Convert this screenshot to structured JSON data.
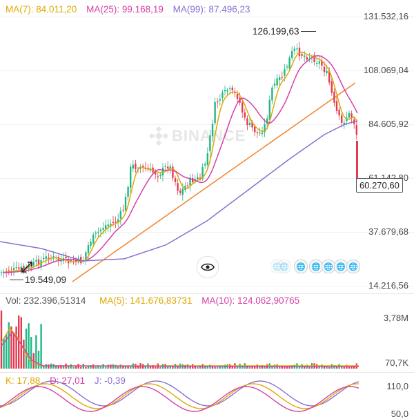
{
  "main_chart": {
    "legend": {
      "ma7": {
        "label": "MA(7): 84.011,20",
        "color": "#e0a800"
      },
      "ma25": {
        "label": "MA(25): 99.168,19",
        "color": "#d63fa6"
      },
      "ma99": {
        "label": "MA(99): 87.496,23",
        "color": "#8a6fd1"
      }
    },
    "y_axis_labels": [
      "131.532,16",
      "108.069,04",
      "84.605,92",
      "61.142,80",
      "37.679,68",
      "14.216,56"
    ],
    "high_marker": "126.199,63",
    "low_marker": "19.549,09",
    "current_price": "60.270,60",
    "watermark": "BINANCE",
    "up_color": "#1fb884",
    "down_color": "#e53950",
    "trendline_color": "#f08a3c"
  },
  "volume_panel": {
    "legend": {
      "vol": {
        "label": "Vol: 232.396,51314",
        "color": "#555555"
      },
      "ma5": {
        "label": "MA(5): 141.676,83731",
        "color": "#e0a800"
      },
      "ma10": {
        "label": "MA(10): 124.062,90765",
        "color": "#d63fa6"
      }
    },
    "y_axis_labels": [
      "3,78M",
      "70,7K"
    ]
  },
  "kdj_panel": {
    "legend": {
      "k": {
        "label": "K: 17,88",
        "color": "#e0a800"
      },
      "d": {
        "label": "D: 27,01",
        "color": "#d63fa6"
      },
      "j": {
        "label": "J: -0,39",
        "color": "#8a6fd1"
      }
    },
    "y_axis_labels": [
      "110,0",
      "50,0"
    ]
  },
  "controls": {
    "eye_icon": "eye-icon",
    "globe_icons": [
      "globe-icon",
      "globe-icon",
      "globe-icon",
      "globe-icon",
      "globe-icon"
    ],
    "globe_symbol": "🌐"
  }
}
